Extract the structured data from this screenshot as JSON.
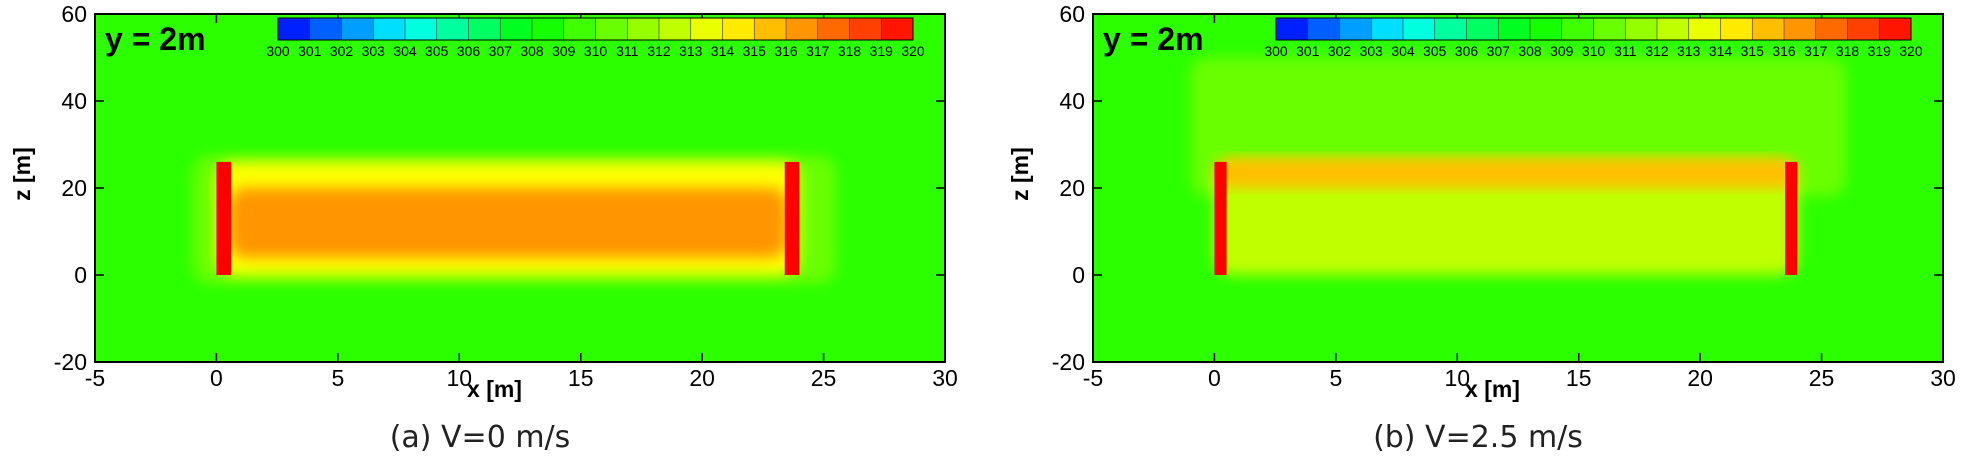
{
  "chart_data": [
    {
      "type": "heatmap",
      "title": "y = 2m",
      "caption": "(a) V=0 m/s",
      "xlabel": "x [m]",
      "ylabel": "z [m]",
      "xlim": [
        -5,
        30
      ],
      "ylim": [
        -20,
        60
      ],
      "xticks": [
        -5,
        0,
        5,
        10,
        15,
        20,
        25,
        30
      ],
      "yticks": [
        -20,
        0,
        20,
        40,
        60
      ],
      "colorbar": {
        "min": 300,
        "max": 320,
        "ticks": [
          300,
          301,
          302,
          303,
          304,
          305,
          306,
          307,
          308,
          309,
          310,
          311,
          312,
          313,
          314,
          315,
          316,
          317,
          318,
          319,
          320
        ]
      },
      "background_value": 309,
      "regions": [
        {
          "name": "plume-halo",
          "x": [
            -1,
            25.5
          ],
          "z": [
            -2,
            27.5
          ],
          "value": 310.5
        },
        {
          "name": "interior",
          "x": [
            0,
            24
          ],
          "z": [
            0,
            26
          ],
          "value": 314
        },
        {
          "name": "interior-core",
          "x": [
            0.5,
            23.5
          ],
          "z": [
            4,
            20
          ],
          "value": 316.5
        },
        {
          "name": "left-hot-wall",
          "x": [
            0,
            0.6
          ],
          "z": [
            0,
            26
          ],
          "value": 320
        },
        {
          "name": "right-hot-wall",
          "x": [
            23.4,
            24
          ],
          "z": [
            0,
            26
          ],
          "value": 320
        }
      ]
    },
    {
      "type": "heatmap",
      "title": "y = 2m",
      "caption": "(b) V=2.5 m/s",
      "xlabel": "x [m]",
      "ylabel": "z [m]",
      "xlim": [
        -5,
        30
      ],
      "ylim": [
        -20,
        60
      ],
      "xticks": [
        -5,
        0,
        5,
        10,
        15,
        20,
        25,
        30
      ],
      "yticks": [
        -20,
        0,
        20,
        40,
        60
      ],
      "colorbar": {
        "min": 300,
        "max": 320,
        "ticks": [
          300,
          301,
          302,
          303,
          304,
          305,
          306,
          307,
          308,
          309,
          310,
          311,
          312,
          313,
          314,
          315,
          316,
          317,
          318,
          319,
          320
        ]
      },
      "background_value": 309,
      "regions": [
        {
          "name": "upper-plume",
          "x": [
            -1,
            26
          ],
          "z": [
            18,
            50
          ],
          "value": 310.5
        },
        {
          "name": "interior",
          "x": [
            0,
            24
          ],
          "z": [
            0,
            26
          ],
          "value": 312.5
        },
        {
          "name": "top-band",
          "x": [
            0,
            24
          ],
          "z": [
            20,
            27
          ],
          "value": 315.5
        },
        {
          "name": "left-hot-wall",
          "x": [
            0,
            0.5
          ],
          "z": [
            0,
            26
          ],
          "value": 320
        },
        {
          "name": "right-hot-wall",
          "x": [
            23.5,
            24
          ],
          "z": [
            0,
            26
          ],
          "value": 320
        }
      ]
    }
  ]
}
